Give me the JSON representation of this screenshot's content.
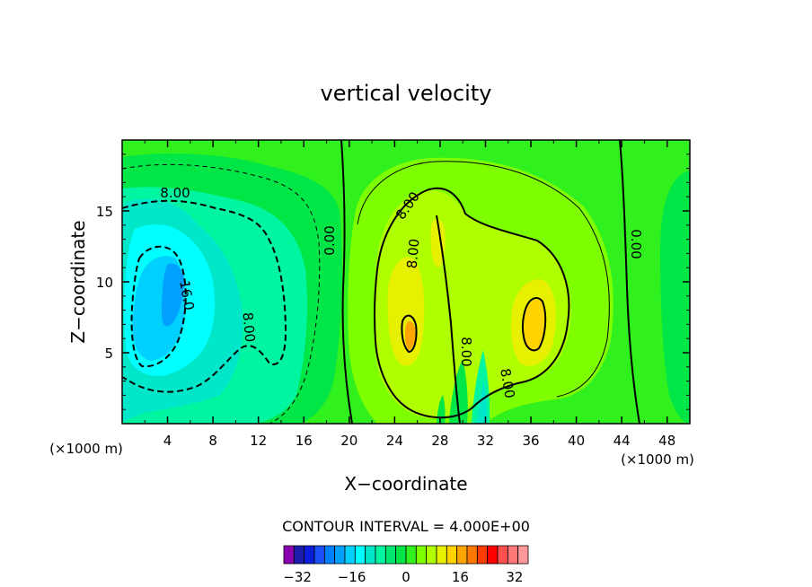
{
  "chart_data": {
    "type": "heatmap",
    "title": "vertical velocity",
    "xlabel": "X−coordinate",
    "ylabel": "Z−coordinate",
    "x_unit_left": "(×1000 m)",
    "x_unit_right": "(×1000 m)",
    "xlim": [
      0,
      50
    ],
    "ylim": [
      0,
      20
    ],
    "x_ticks": [
      "4",
      "8",
      "12",
      "16",
      "20",
      "24",
      "28",
      "32",
      "36",
      "40",
      "44",
      "48"
    ],
    "y_ticks": [
      "5",
      "10",
      "15"
    ],
    "contour_interval_text": "CONTOUR INTERVAL = 4.000E+00",
    "contour_labels": [
      "8.00",
      "16.0",
      "8.00",
      "0.00",
      "8.00",
      "8.00",
      "8.00",
      "8.00",
      "0.00"
    ],
    "field_features": [
      {
        "kind": "downdraft",
        "x": 5,
        "z": 8,
        "value": -22
      },
      {
        "kind": "updraft",
        "x": 25,
        "z": 7,
        "value": 16
      },
      {
        "kind": "updraft",
        "x": 36,
        "z": 8,
        "value": 19
      },
      {
        "kind": "updraft",
        "x": 28,
        "z": 12,
        "value": 9
      },
      {
        "kind": "downdraft",
        "x": 30,
        "z": 2,
        "value": -6
      }
    ],
    "colorbar": {
      "ticks": [
        "−32",
        "−16",
        "0",
        "16",
        "32"
      ],
      "range": [
        -36,
        36
      ],
      "colors": [
        "#8a00b0",
        "#1c1cac",
        "#0a1edc",
        "#1950f5",
        "#0080ff",
        "#00a0ff",
        "#00d0ff",
        "#00ffff",
        "#00e6c8",
        "#00f5a0",
        "#00e66e",
        "#00e646",
        "#30f01e",
        "#7dff00",
        "#b0ff00",
        "#e6f000",
        "#ffd200",
        "#ffa500",
        "#ff7800",
        "#ff3c00",
        "#ff0000",
        "#ff5050",
        "#ff7878",
        "#ff9999"
      ]
    }
  }
}
